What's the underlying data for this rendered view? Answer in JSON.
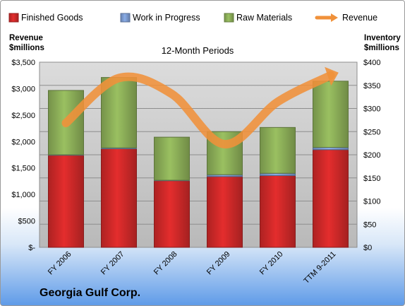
{
  "company": "Georgia Gulf Corp.",
  "colors": {
    "finished_goods": "#d32a2a",
    "work_in_progress": "#7f9fd6",
    "raw_materials": "#8fb25a",
    "revenue": "#f0913a",
    "plot_bg": "#c9c9c9"
  },
  "chart_data": {
    "type": "bar",
    "stacked": true,
    "title": "12-Month Periods",
    "left_axis_label": [
      "Revenue",
      "$millions"
    ],
    "right_axis_label": [
      "Inventory",
      "$millions"
    ],
    "categories": [
      "FY 2006",
      "FY 2007",
      "FY 2008",
      "FY 2009",
      "FY 2010",
      "TTM 9-2011"
    ],
    "left_ticks": [
      "$-",
      "$500",
      "$1,000",
      "$1,500",
      "$2,000",
      "$2,500",
      "$3,000",
      "$3,500"
    ],
    "right_ticks": [
      "$0",
      "$50",
      "$100",
      "$150",
      "$200",
      "$250",
      "$300",
      "$350",
      "$400"
    ],
    "ylim_left": [
      0,
      3500
    ],
    "ylim_right": [
      0,
      400
    ],
    "legend_position": "top",
    "series": [
      {
        "name": "Finished Goods",
        "kind": "bar",
        "axis": "right",
        "values": [
          199,
          213,
          144,
          153,
          155,
          211
        ]
      },
      {
        "name": "Work in Progress",
        "kind": "bar",
        "axis": "right",
        "values": [
          1,
          2,
          1,
          4,
          5,
          5
        ]
      },
      {
        "name": "Raw Materials",
        "kind": "bar",
        "axis": "right",
        "values": [
          139,
          152,
          93,
          93,
          99,
          143
        ]
      },
      {
        "name": "Revenue",
        "kind": "line",
        "axis": "left",
        "values": [
          2350,
          3200,
          2900,
          1950,
          2750,
          3250
        ]
      }
    ]
  }
}
